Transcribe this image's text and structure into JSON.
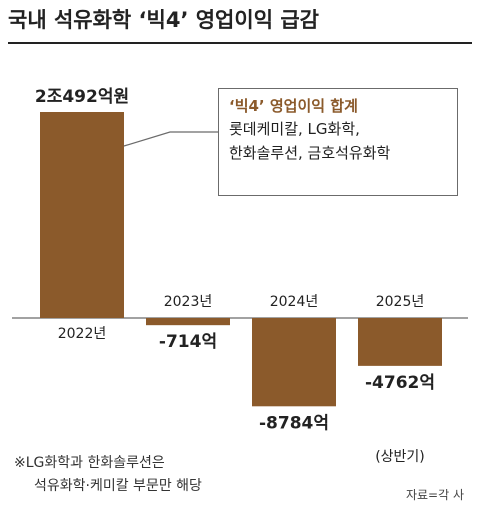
{
  "title": "국내 석유화학 ‘빅4’ 영업이익 급감",
  "callout": {
    "title": "‘빅4’ 영업이익 합계",
    "lines": [
      "롯데케미칼, LG화학,",
      "한화솔루션, 금호석유화학"
    ]
  },
  "note": {
    "line1": "※LG화학과 한화솔루션은",
    "line2": "석유화학·케미칼 부문만 해당"
  },
  "source": "자료=각 사",
  "sub_label": "(상반기)",
  "colors": {
    "bar": "#8b5a2b",
    "axis": "#6b6b6b",
    "hatch_inner": "#ffffff"
  },
  "chart_data": {
    "type": "bar",
    "title": "국내 석유화학 ‘빅4’ 영업이익 급감",
    "categories": [
      "2022년",
      "2023년",
      "2024년",
      "2025년"
    ],
    "values": [
      20492,
      -714,
      -8784,
      -4762
    ],
    "value_labels": [
      "2조492억원",
      "-714억",
      "-8784억",
      "-4762억"
    ],
    "unit": "억원",
    "ylim": [
      -9500,
      21000
    ],
    "grid": false,
    "partial_year_note": "(상반기)"
  }
}
